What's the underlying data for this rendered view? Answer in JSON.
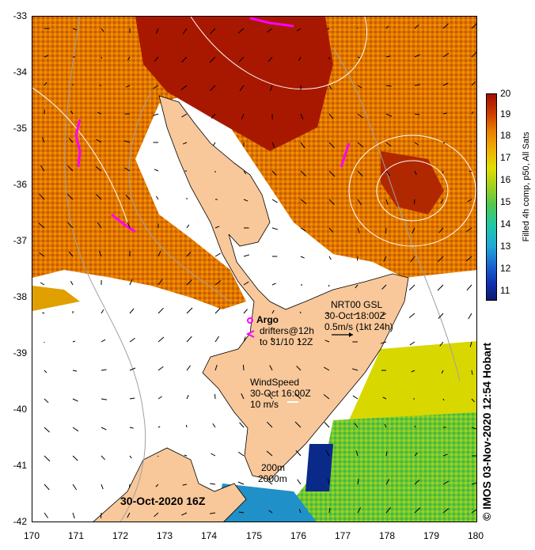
{
  "map": {
    "latitude_labels": [
      "-33",
      "-34",
      "-35",
      "-36",
      "-37",
      "-38",
      "-39",
      "-40",
      "-41",
      "-42"
    ],
    "longitude_labels": [
      "170",
      "171",
      "172",
      "173",
      "174",
      "175",
      "176",
      "177",
      "178",
      "179",
      "180"
    ],
    "colorbar": {
      "labels": [
        "20",
        "19",
        "18",
        "17",
        "16",
        "15",
        "14",
        "13",
        "12",
        "11"
      ],
      "title": "Filled 4h comp, p50, All Sats"
    },
    "credit": "© IMOS 03-Nov-2020 12:54 Hobart",
    "date_label": "30-Oct-2020 16Z",
    "legend": {
      "argo_title": "Argo",
      "drifters_line1": "drifters@12h",
      "drifters_line2": "to 31/10 12Z",
      "current_line1": "NRT00 GSL",
      "current_line2": "30-Oct 18:00Z",
      "current_line3": "0.5m/s (1kt 24h)",
      "wind_line1": "WindSpeed",
      "wind_line2": "30-Oct 16:00Z",
      "wind_line3": "10 m/s",
      "depth_line1": "200m",
      "depth_line2": "2000m"
    },
    "colors": {
      "land": "#f8c89a",
      "warm": "#c04000",
      "hot": "#a01000",
      "mid": "#e88000",
      "cool": "#50c850",
      "cold": "#1030b0",
      "drifter": "#ff00ff"
    }
  }
}
